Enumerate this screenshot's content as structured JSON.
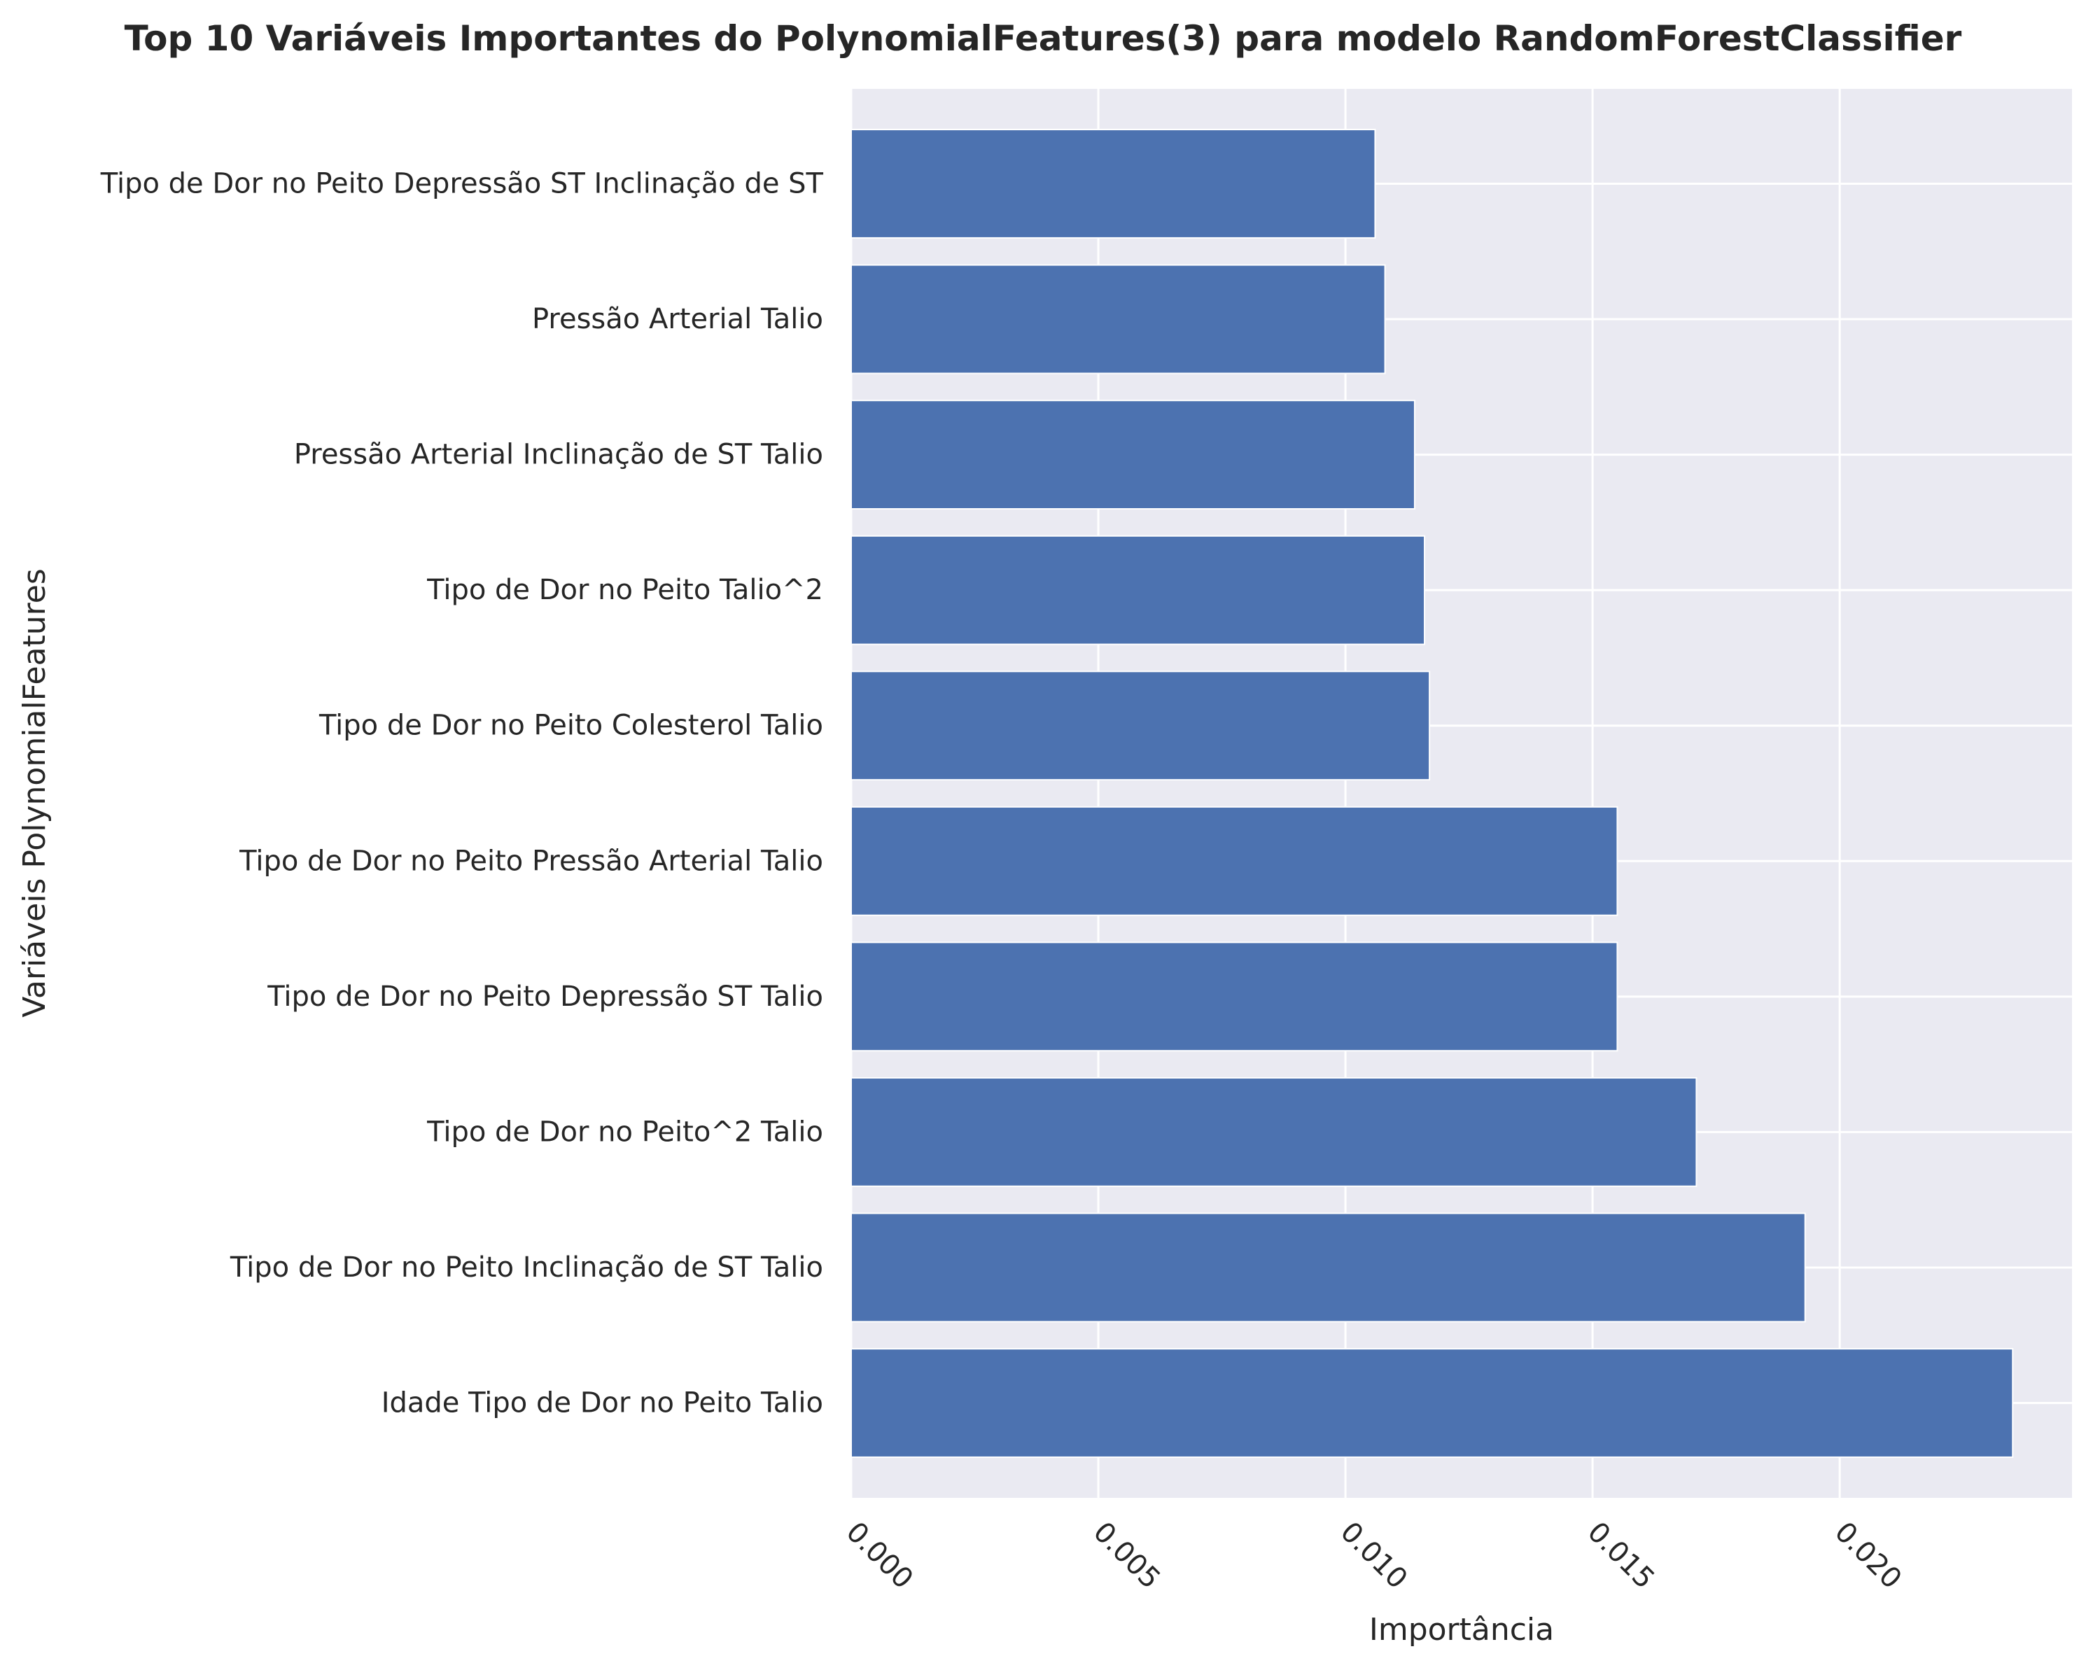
{
  "chart_data": {
    "type": "bar",
    "orientation": "horizontal",
    "title": "Top 10 Variáveis Importantes do PolynomialFeatures(3) para modelo RandomForestClassifier",
    "xlabel": "Importância",
    "ylabel": "Variáveis PolynomialFeatures",
    "categories": [
      "Tipo de Dor no Peito Depressão ST Inclinação de ST",
      "Pressão Arterial Talio",
      "Pressão Arterial Inclinação de ST Talio",
      "Tipo de Dor no Peito Talio^2",
      "Tipo de Dor no Peito Colesterol Talio",
      "Tipo de Dor no Peito Pressão Arterial Talio",
      "Tipo de Dor no Peito Depressão ST Talio",
      "Tipo de Dor no Peito^2 Talio",
      "Tipo de Dor no Peito Inclinação de ST Talio",
      "Idade Tipo de Dor no Peito Talio"
    ],
    "values": [
      0.0106,
      0.0108,
      0.0114,
      0.0116,
      0.0117,
      0.0155,
      0.0155,
      0.0171,
      0.0193,
      0.0235
    ],
    "xlim": [
      0,
      0.0247
    ],
    "xticks": [
      "0.000",
      "0.005",
      "0.010",
      "0.015",
      "0.020"
    ],
    "xtick_values": [
      0,
      0.005,
      0.01,
      0.015,
      0.02
    ],
    "xtick_rotation_deg": 45,
    "grid": true,
    "colors": {
      "bar": "#4c72b0",
      "background": "#eaeaf2",
      "grid": "#ffffff",
      "text": "#262626"
    }
  }
}
